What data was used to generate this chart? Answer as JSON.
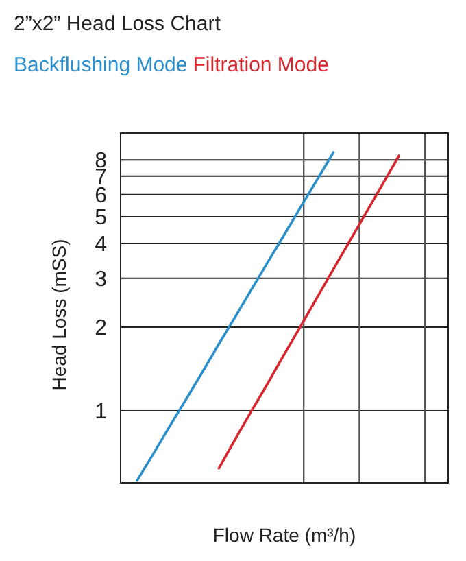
{
  "chart_data": {
    "type": "line",
    "title": "2”x2”  Head Loss Chart",
    "xlabel": "Flow Rate (m³/h)",
    "ylabel": "Head Loss (mSS)",
    "log": "y",
    "grid": "y",
    "tick_labels": "y",
    "marker": "none",
    "line_style": "solid",
    "categories": [
      null,
      null,
      null,
      null,
      null,
      null,
      null,
      null,
      null,
      null,
      null,
      null,
      null,
      null,
      null,
      null,
      null,
      null,
      null,
      null,
      null
    ],
    "ylim": [
      0.55,
      10
    ],
    "yticks": [
      1,
      2,
      3,
      4,
      5,
      6,
      7,
      8
    ],
    "series": [
      {
        "name": "Backflushing Mode",
        "color": "#2a8fcb",
        "values": [
          null,
          0.56,
          0.7,
          0.88,
          1.1,
          1.38,
          1.74,
          2.18,
          2.74,
          3.44,
          4.31,
          5.42,
          6.8,
          8.53,
          null,
          null,
          null,
          null,
          null,
          null,
          null
        ]
      },
      {
        "name": "Filtration Mode",
        "color": "#d7262e",
        "values": [
          null,
          null,
          null,
          null,
          null,
          null,
          0.62,
          0.79,
          1.0,
          1.26,
          1.6,
          2.02,
          2.56,
          3.24,
          4.09,
          5.18,
          6.55,
          8.29,
          null,
          null,
          null
        ]
      }
    ]
  }
}
